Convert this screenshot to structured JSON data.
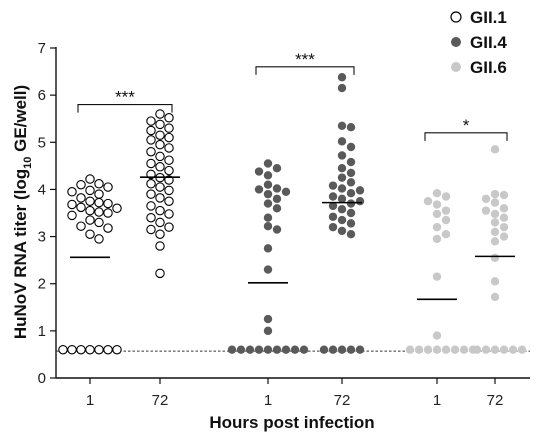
{
  "chart_data": {
    "type": "scatter",
    "xlabel": "Hours post infection",
    "ylabel_main": "HuNoV RNA titer (log",
    "ylabel_sub": "10",
    "ylabel_end": " GE/well)",
    "ylim": [
      0,
      7
    ],
    "yticks": [
      0,
      1,
      2,
      3,
      4,
      5,
      6,
      7
    ],
    "detection_limit": 0.57,
    "groups": [
      {
        "id": "GII.1",
        "timepoints": [
          "1",
          "72"
        ]
      },
      {
        "id": "GII.4",
        "timepoints": [
          "1",
          "72"
        ]
      },
      {
        "id": "GII.6",
        "timepoints": [
          "1",
          "72"
        ]
      }
    ],
    "series": [
      {
        "name": "GII.1",
        "color": "#000000",
        "marker": "open-circle",
        "points": [
          {
            "hours": "1",
            "mean": 2.56,
            "values": [
              4.22,
              4.1,
              4.12,
              4.05,
              3.98,
              3.95,
              3.9,
              3.82,
              3.75,
              3.72,
              3.7,
              3.68,
              3.62,
              3.6,
              3.55,
              3.52,
              3.5,
              3.45,
              3.35,
              3.3,
              3.22,
              3.18,
              3.05,
              2.95,
              0.6,
              0.6,
              0.6,
              0.6,
              0.6,
              0.6,
              0.6
            ]
          },
          {
            "hours": "72",
            "mean": 4.26,
            "values": [
              5.6,
              5.52,
              5.45,
              5.38,
              5.3,
              5.25,
              5.15,
              5.1,
              5.05,
              4.95,
              4.88,
              4.8,
              4.7,
              4.62,
              4.55,
              4.48,
              4.4,
              4.32,
              4.25,
              4.2,
              4.12,
              4.05,
              3.98,
              3.9,
              3.82,
              3.75,
              3.65,
              3.55,
              3.48,
              3.4,
              3.3,
              3.2,
              3.15,
              3.05,
              2.8,
              2.22
            ]
          }
        ]
      },
      {
        "name": "GII.4",
        "color": "#5a5a5a",
        "marker": "filled-circle",
        "points": [
          {
            "hours": "1",
            "mean": 2.02,
            "values": [
              4.55,
              4.45,
              4.38,
              4.3,
              4.1,
              4.02,
              4.0,
              3.95,
              3.9,
              3.8,
              3.7,
              3.6,
              3.4,
              3.22,
              3.15,
              2.75,
              2.3,
              1.25,
              1.0,
              0.6,
              0.6,
              0.6,
              0.6,
              0.6,
              0.6,
              0.6,
              0.6,
              0.6
            ]
          },
          {
            "hours": "72",
            "mean": 3.72,
            "values": [
              6.38,
              6.15,
              5.35,
              5.32,
              5.02,
              4.9,
              4.72,
              4.58,
              4.45,
              4.35,
              4.25,
              4.15,
              4.08,
              4.02,
              3.98,
              3.92,
              3.85,
              3.8,
              3.75,
              3.7,
              3.65,
              3.58,
              3.5,
              3.42,
              3.35,
              3.28,
              3.2,
              3.12,
              3.05,
              0.6,
              0.6,
              0.6,
              0.6,
              0.6
            ]
          }
        ]
      },
      {
        "name": "GII.6",
        "color": "#c8c8c8",
        "marker": "filled-circle",
        "points": [
          {
            "hours": "1",
            "mean": 1.67,
            "values": [
              3.92,
              3.85,
              3.75,
              3.68,
              3.55,
              3.48,
              3.35,
              3.2,
              3.05,
              2.95,
              2.15,
              0.9,
              0.6,
              0.6,
              0.6,
              0.6,
              0.6,
              0.6,
              0.6,
              0.6
            ]
          },
          {
            "hours": "72",
            "mean": 2.58,
            "values": [
              4.85,
              3.9,
              3.88,
              3.8,
              3.72,
              3.6,
              3.55,
              3.48,
              3.4,
              3.3,
              3.2,
              3.1,
              3.0,
              2.9,
              2.55,
              2.05,
              1.72,
              0.6,
              0.6,
              0.6,
              0.6,
              0.6,
              0.6
            ]
          }
        ]
      }
    ],
    "significance": [
      {
        "group": "GII.1",
        "label": "***",
        "y": 5.8
      },
      {
        "group": "GII.4",
        "label": "***",
        "y": 6.6
      },
      {
        "group": "GII.6",
        "label": "*",
        "y": 5.2
      }
    ],
    "legend": {
      "placement": "top-right",
      "entries": [
        {
          "label": "GII.1",
          "color": "#000000",
          "marker": "open-circle"
        },
        {
          "label": "GII.4",
          "color": "#5a5a5a",
          "marker": "filled-circle"
        },
        {
          "label": "GII.6",
          "color": "#c8c8c8",
          "marker": "filled-circle"
        }
      ]
    }
  }
}
